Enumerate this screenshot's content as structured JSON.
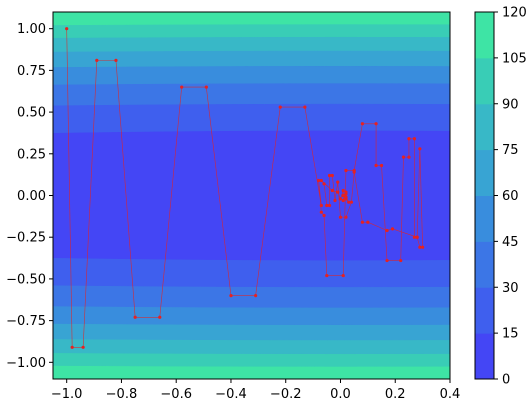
{
  "chart_data": {
    "type": "contour",
    "title": "",
    "xlabel": "",
    "ylabel": "",
    "xlim": [
      -1.05,
      0.4
    ],
    "ylim": [
      -1.1,
      1.1
    ],
    "x_ticks": [
      -1.0,
      -0.8,
      -0.6,
      -0.4,
      -0.2,
      0.0,
      0.2,
      0.4
    ],
    "x_tick_labels": [
      "−1.0",
      "−0.8",
      "−0.6",
      "−0.4",
      "−0.2",
      "0.0",
      "0.2",
      "0.4"
    ],
    "y_ticks": [
      1.0,
      0.75,
      0.5,
      0.25,
      0.0,
      -0.25,
      -0.5,
      -0.75,
      -1.0
    ],
    "y_tick_labels": [
      "1.00",
      "0.75",
      "0.50",
      "0.25",
      "0.00",
      "−0.25",
      "−0.50",
      "−0.75",
      "−1.00"
    ],
    "contour": {
      "function": "f(x, y) = x^2 + 100*y^2",
      "levels": [
        0,
        15,
        30,
        45,
        60,
        75,
        90,
        105,
        120
      ],
      "level_colors": [
        "#4446f5",
        "#3f5fee",
        "#3c76e6",
        "#398ddd",
        "#38a4d3",
        "#38b8c7",
        "#39cdb6",
        "#3ee4a5"
      ]
    },
    "colorbar": {
      "ticks": [
        0,
        15,
        30,
        45,
        60,
        75,
        90,
        105,
        120
      ],
      "tick_labels": [
        "0",
        "15",
        "30",
        "45",
        "60",
        "75",
        "90",
        "105",
        "120"
      ],
      "range": [
        0,
        120
      ]
    },
    "path": {
      "color": "#e8211f",
      "points": [
        [
          -1.0,
          1.0
        ],
        [
          -0.98,
          -0.91
        ],
        [
          -0.94,
          -0.91
        ],
        [
          -0.89,
          0.81
        ],
        [
          -0.82,
          0.81
        ],
        [
          -0.75,
          -0.73
        ],
        [
          -0.66,
          -0.73
        ],
        [
          -0.58,
          0.65
        ],
        [
          -0.49,
          0.65
        ],
        [
          -0.4,
          -0.6
        ],
        [
          -0.31,
          -0.6
        ],
        [
          -0.22,
          0.53
        ],
        [
          -0.13,
          0.53
        ],
        [
          -0.07,
          -0.06
        ],
        [
          -0.08,
          0.09
        ],
        [
          -0.07,
          -0.1
        ],
        [
          -0.06,
          -0.12
        ],
        [
          -0.05,
          -0.48
        ],
        [
          0.01,
          -0.48
        ],
        [
          0.02,
          0.15
        ],
        [
          0.05,
          0.15
        ],
        [
          0.08,
          0.43
        ],
        [
          0.13,
          0.43
        ],
        [
          0.13,
          0.18
        ],
        [
          0.15,
          0.18
        ],
        [
          0.17,
          -0.39
        ],
        [
          0.22,
          -0.39
        ],
        [
          0.23,
          0.23
        ],
        [
          0.25,
          0.23
        ],
        [
          0.25,
          0.34
        ],
        [
          0.27,
          0.34
        ],
        [
          0.27,
          -0.25
        ],
        [
          0.28,
          -0.25
        ],
        [
          0.29,
          -0.31
        ],
        [
          0.3,
          -0.31
        ],
        [
          0.29,
          0.28
        ],
        [
          0.28,
          -0.25
        ],
        [
          0.19,
          -0.2
        ],
        [
          0.17,
          -0.21
        ],
        [
          0.1,
          -0.16
        ],
        [
          0.08,
          -0.16
        ],
        [
          0.05,
          0.14
        ],
        [
          0.04,
          -0.04
        ],
        [
          0.02,
          -0.13
        ],
        [
          0.0,
          -0.13
        ],
        [
          -0.01,
          0.08
        ],
        [
          -0.02,
          -0.03
        ],
        [
          -0.03,
          0.12
        ],
        [
          -0.04,
          0.12
        ],
        [
          -0.04,
          -0.06
        ],
        [
          -0.05,
          -0.06
        ],
        [
          -0.06,
          0.07
        ],
        [
          -0.07,
          0.09
        ],
        [
          -0.03,
          0.03
        ],
        [
          -0.01,
          0.02
        ],
        [
          0.0,
          -0.02
        ],
        [
          0.01,
          0.03
        ],
        [
          0.01,
          -0.03
        ],
        [
          0.02,
          0.01
        ],
        [
          0.02,
          -0.01
        ],
        [
          0.03,
          -0.04
        ],
        [
          0.02,
          -0.02
        ],
        [
          0.01,
          0.0
        ],
        [
          0.02,
          0.02
        ],
        [
          0.02,
          -0.01
        ],
        [
          0.01,
          0.0
        ]
      ]
    }
  }
}
